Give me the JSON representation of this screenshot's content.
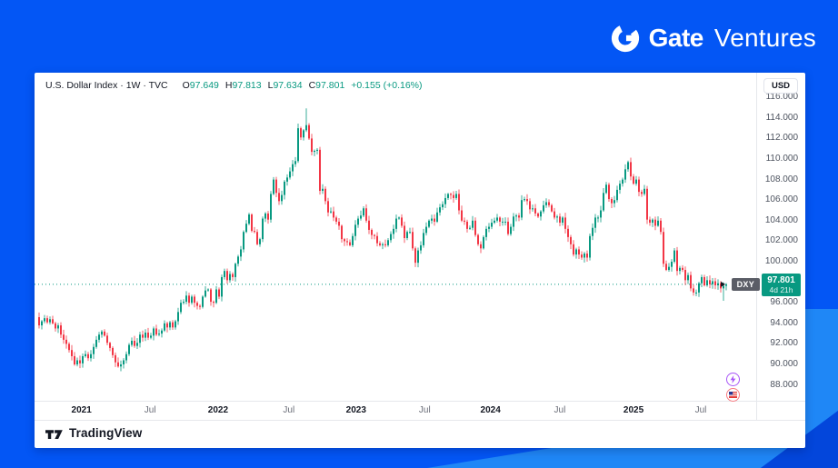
{
  "branding": {
    "name_bold": "Gate",
    "name_light": "Ventures"
  },
  "header": {
    "title_line": "U.S. Dollar Index · 1W · TVC",
    "ohlc": [
      {
        "k": "O",
        "v": "97.649"
      },
      {
        "k": "H",
        "v": "97.813"
      },
      {
        "k": "L",
        "v": "97.634"
      },
      {
        "k": "C",
        "v": "97.801"
      }
    ],
    "change": "+0.155 (+0.16%)"
  },
  "price_scale": {
    "currency": "USD",
    "labels": [
      "116.000",
      "114.000",
      "112.000",
      "110.000",
      "108.000",
      "106.000",
      "104.000",
      "102.000",
      "100.000",
      "96.000",
      "94.000",
      "92.000",
      "90.000",
      "88.000"
    ],
    "badge": {
      "symbol": "DXY",
      "price": "97.801",
      "countdown": "4d 21h"
    }
  },
  "time_scale": {
    "labels": [
      {
        "text": "2021",
        "type": "year",
        "pos": 0.065
      },
      {
        "text": "Jul",
        "type": "month",
        "pos": 0.16
      },
      {
        "text": "2022",
        "type": "year",
        "pos": 0.254
      },
      {
        "text": "Jul",
        "type": "month",
        "pos": 0.352
      },
      {
        "text": "2023",
        "type": "year",
        "pos": 0.445
      },
      {
        "text": "Jul",
        "type": "month",
        "pos": 0.54
      },
      {
        "text": "2024",
        "type": "year",
        "pos": 0.631
      },
      {
        "text": "Jul",
        "type": "month",
        "pos": 0.727
      },
      {
        "text": "2025",
        "type": "year",
        "pos": 0.829
      },
      {
        "text": "Jul",
        "type": "month",
        "pos": 0.922
      }
    ]
  },
  "watermark": {
    "label": "TradingView"
  },
  "event_markers": [
    {
      "icon": "lightning-event-icon",
      "color": "#A855F7"
    },
    {
      "icon": "us-flag-event-icon",
      "color": "#EF5350"
    }
  ],
  "chart_data": {
    "type": "candlestick",
    "symbol": "DXY",
    "title": "U.S. Dollar Index",
    "interval": "1W",
    "x_range": [
      "Oct 2020",
      "Sep 2025"
    ],
    "ylim": [
      87.5,
      116.5
    ],
    "y_tick_step": 2,
    "up_color": "#089981",
    "down_color": "#F23645",
    "last_price": 97.801,
    "intraperiod_high": 114.78,
    "first_open": 94.6,
    "weekly_closes": [
      93.8,
      94.2,
      94.5,
      94.1,
      94.4,
      94.0,
      93.5,
      93.8,
      92.9,
      92.4,
      92.0,
      91.4,
      90.8,
      90.0,
      90.4,
      90.1,
      90.8,
      91.0,
      90.6,
      91.0,
      91.7,
      92.4,
      92.9,
      93.2,
      92.8,
      92.1,
      91.6,
      90.9,
      90.2,
      89.8,
      90.0,
      90.4,
      91.0,
      91.9,
      92.3,
      91.8,
      92.1,
      92.9,
      92.6,
      93.1,
      92.6,
      92.8,
      93.5,
      92.9,
      93.0,
      93.3,
      94.0,
      93.6,
      94.1,
      93.6,
      94.2,
      95.1,
      96.0,
      96.1,
      96.7,
      96.0,
      96.6,
      96.0,
      95.7,
      95.6,
      96.6,
      97.2,
      97.3,
      96.1,
      96.0,
      97.3,
      96.6,
      98.5,
      99.1,
      98.2,
      98.8,
      98.5,
      99.8,
      100.5,
      101.2,
      102.9,
      103.7,
      104.6,
      103.0,
      102.9,
      101.7,
      102.2,
      104.2,
      104.7,
      104.1,
      106.6,
      108.0,
      106.7,
      105.9,
      106.5,
      107.8,
      108.2,
      108.8,
      109.5,
      109.8,
      113.0,
      112.1,
      112.8,
      113.3,
      112.0,
      110.7,
      110.8,
      110.9,
      106.9,
      107.1,
      105.9,
      104.8,
      104.9,
      104.3,
      103.9,
      103.5,
      102.2,
      102.0,
      101.9,
      101.6,
      102.5,
      103.6,
      104.2,
      104.5,
      105.2,
      104.0,
      103.1,
      102.6,
      102.5,
      101.8,
      101.6,
      101.7,
      101.6,
      102.1,
      102.7,
      103.2,
      104.2,
      104.3,
      103.5,
      102.3,
      102.9,
      102.9,
      101.3,
      99.9,
      101.1,
      101.6,
      102.8,
      103.4,
      104.0,
      104.2,
      103.9,
      104.8,
      105.3,
      105.6,
      106.2,
      106.6,
      106.5,
      106.2,
      106.6,
      105.0,
      104.0,
      103.9,
      103.2,
      103.3,
      104.0,
      102.6,
      101.7,
      101.3,
      102.4,
      103.2,
      103.4,
      103.8,
      104.0,
      104.3,
      103.9,
      103.9,
      103.9,
      102.7,
      103.4,
      104.4,
      104.5,
      104.3,
      106.0,
      106.1,
      105.9,
      105.1,
      105.2,
      104.7,
      104.4,
      104.9,
      105.5,
      105.8,
      105.5,
      104.9,
      104.3,
      104.4,
      103.8,
      104.3,
      103.2,
      102.4,
      101.7,
      100.7,
      101.2,
      100.7,
      100.4,
      100.8,
      100.4,
      102.5,
      103.3,
      104.3,
      104.3,
      105.0,
      106.7,
      107.5,
      106.1,
      105.7,
      106.0,
      107.0,
      107.6,
      108.0,
      109.0,
      109.7,
      108.3,
      107.6,
      108.0,
      106.8,
      106.6,
      107.1,
      104.1,
      103.8,
      104.1,
      103.5,
      104.0,
      102.9,
      99.8,
      99.2,
      99.5,
      100.0,
      101.1,
      99.1,
      99.4,
      99.2,
      98.2,
      98.7,
      97.4,
      97.0,
      97.0,
      97.9,
      98.5,
      97.7,
      98.2,
      97.8,
      98.1,
      97.7,
      97.9,
      97.4,
      97.65,
      97.801
    ]
  }
}
